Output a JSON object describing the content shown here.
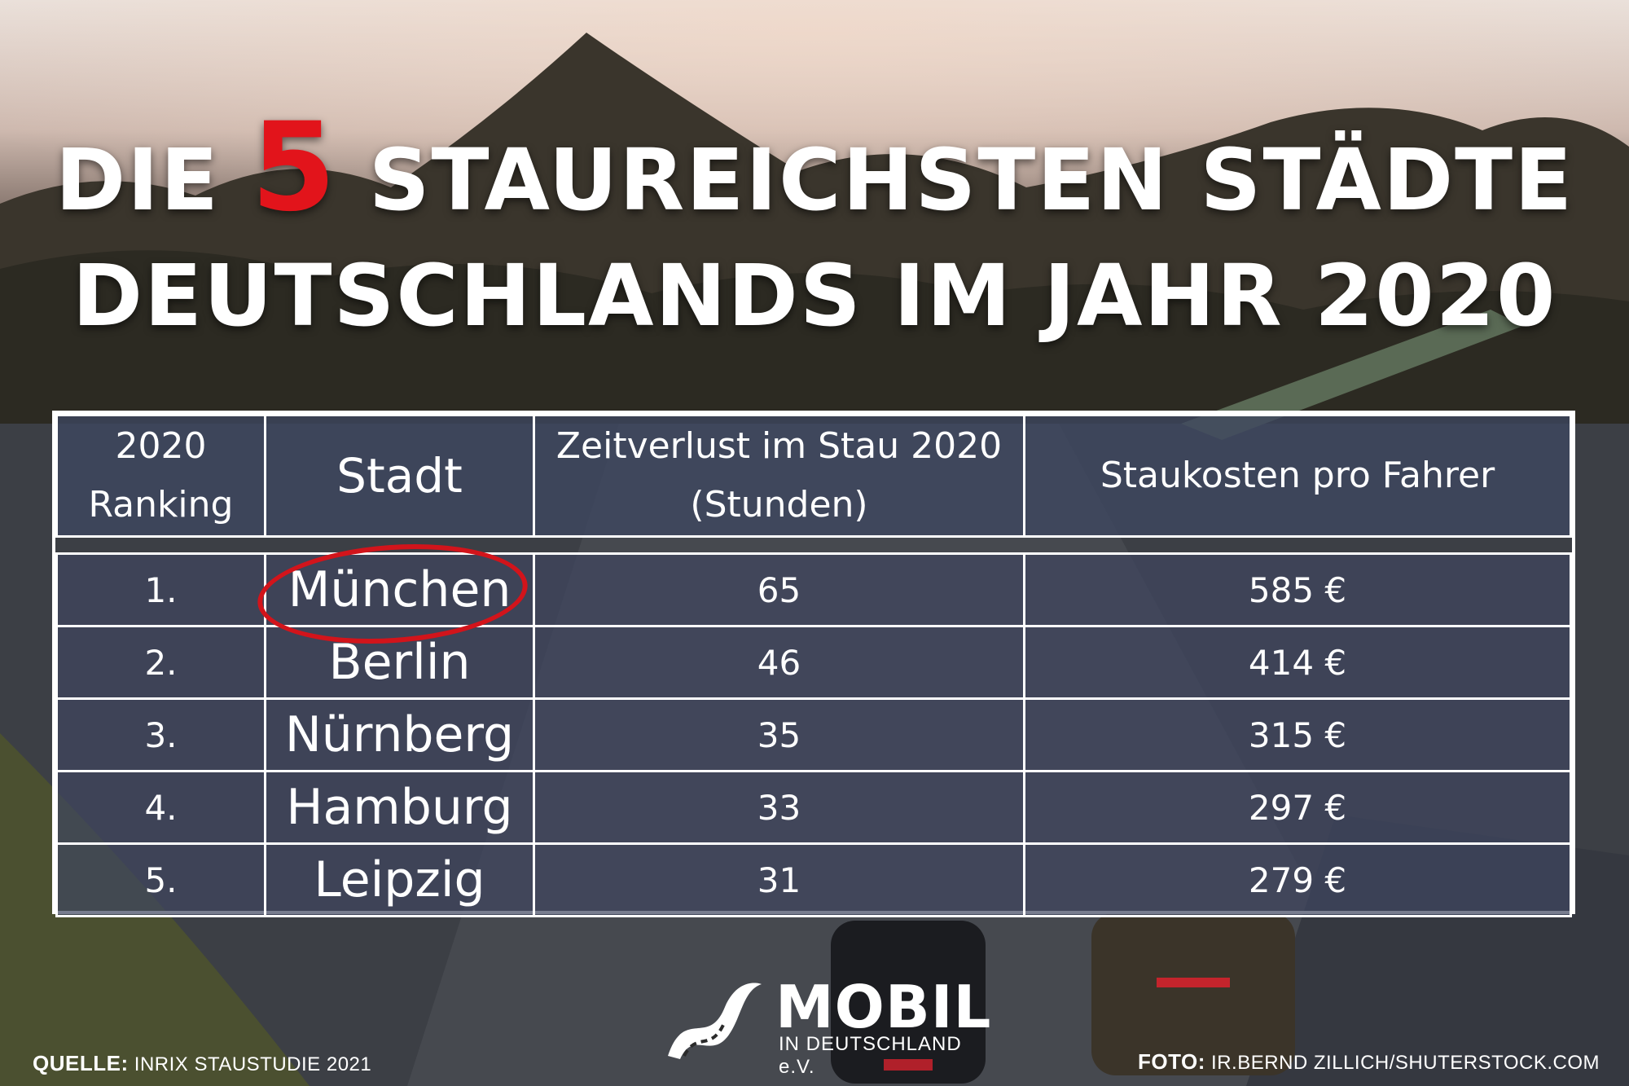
{
  "headline": {
    "word1": "DIE",
    "number": "5",
    "word2": "STAUREICHSTEN STÄDTE",
    "line2": "DEUTSCHLANDS IM JAHR 2020"
  },
  "table": {
    "headers": {
      "rank_line1": "2020",
      "rank_line2": "Ranking",
      "city": "Stadt",
      "loss_line1": "Zeitverlust im Stau 2020",
      "loss_line2": "(Stunden)",
      "cost": "Staukosten pro Fahrer"
    },
    "rows": [
      {
        "rank": "1.",
        "city": "München",
        "loss": "65",
        "cost": "585 €"
      },
      {
        "rank": "2.",
        "city": "Berlin",
        "loss": "46",
        "cost": "414 €"
      },
      {
        "rank": "3.",
        "city": "Nürnberg",
        "loss": "35",
        "cost": "315 €"
      },
      {
        "rank": "4.",
        "city": "Hamburg",
        "loss": "33",
        "cost": "297 €"
      },
      {
        "rank": "5.",
        "city": "Leipzig",
        "loss": "31",
        "cost": "279 €"
      }
    ]
  },
  "logo": {
    "title": "MOBIL",
    "subtitle": "IN DEUTSCHLAND e.V.",
    "icon": "road-swoosh-icon"
  },
  "footer": {
    "source_label": "QUELLE:",
    "source_value": "INRIX STAUSTUDIE 2021",
    "photo_label": "FOTO:",
    "photo_value": "IR.BERND ZILLICH/SHUTERSTOCK.COM"
  },
  "colors": {
    "accent": "#e2141b",
    "table_fill": "#3e4660",
    "text": "#ffffff"
  }
}
